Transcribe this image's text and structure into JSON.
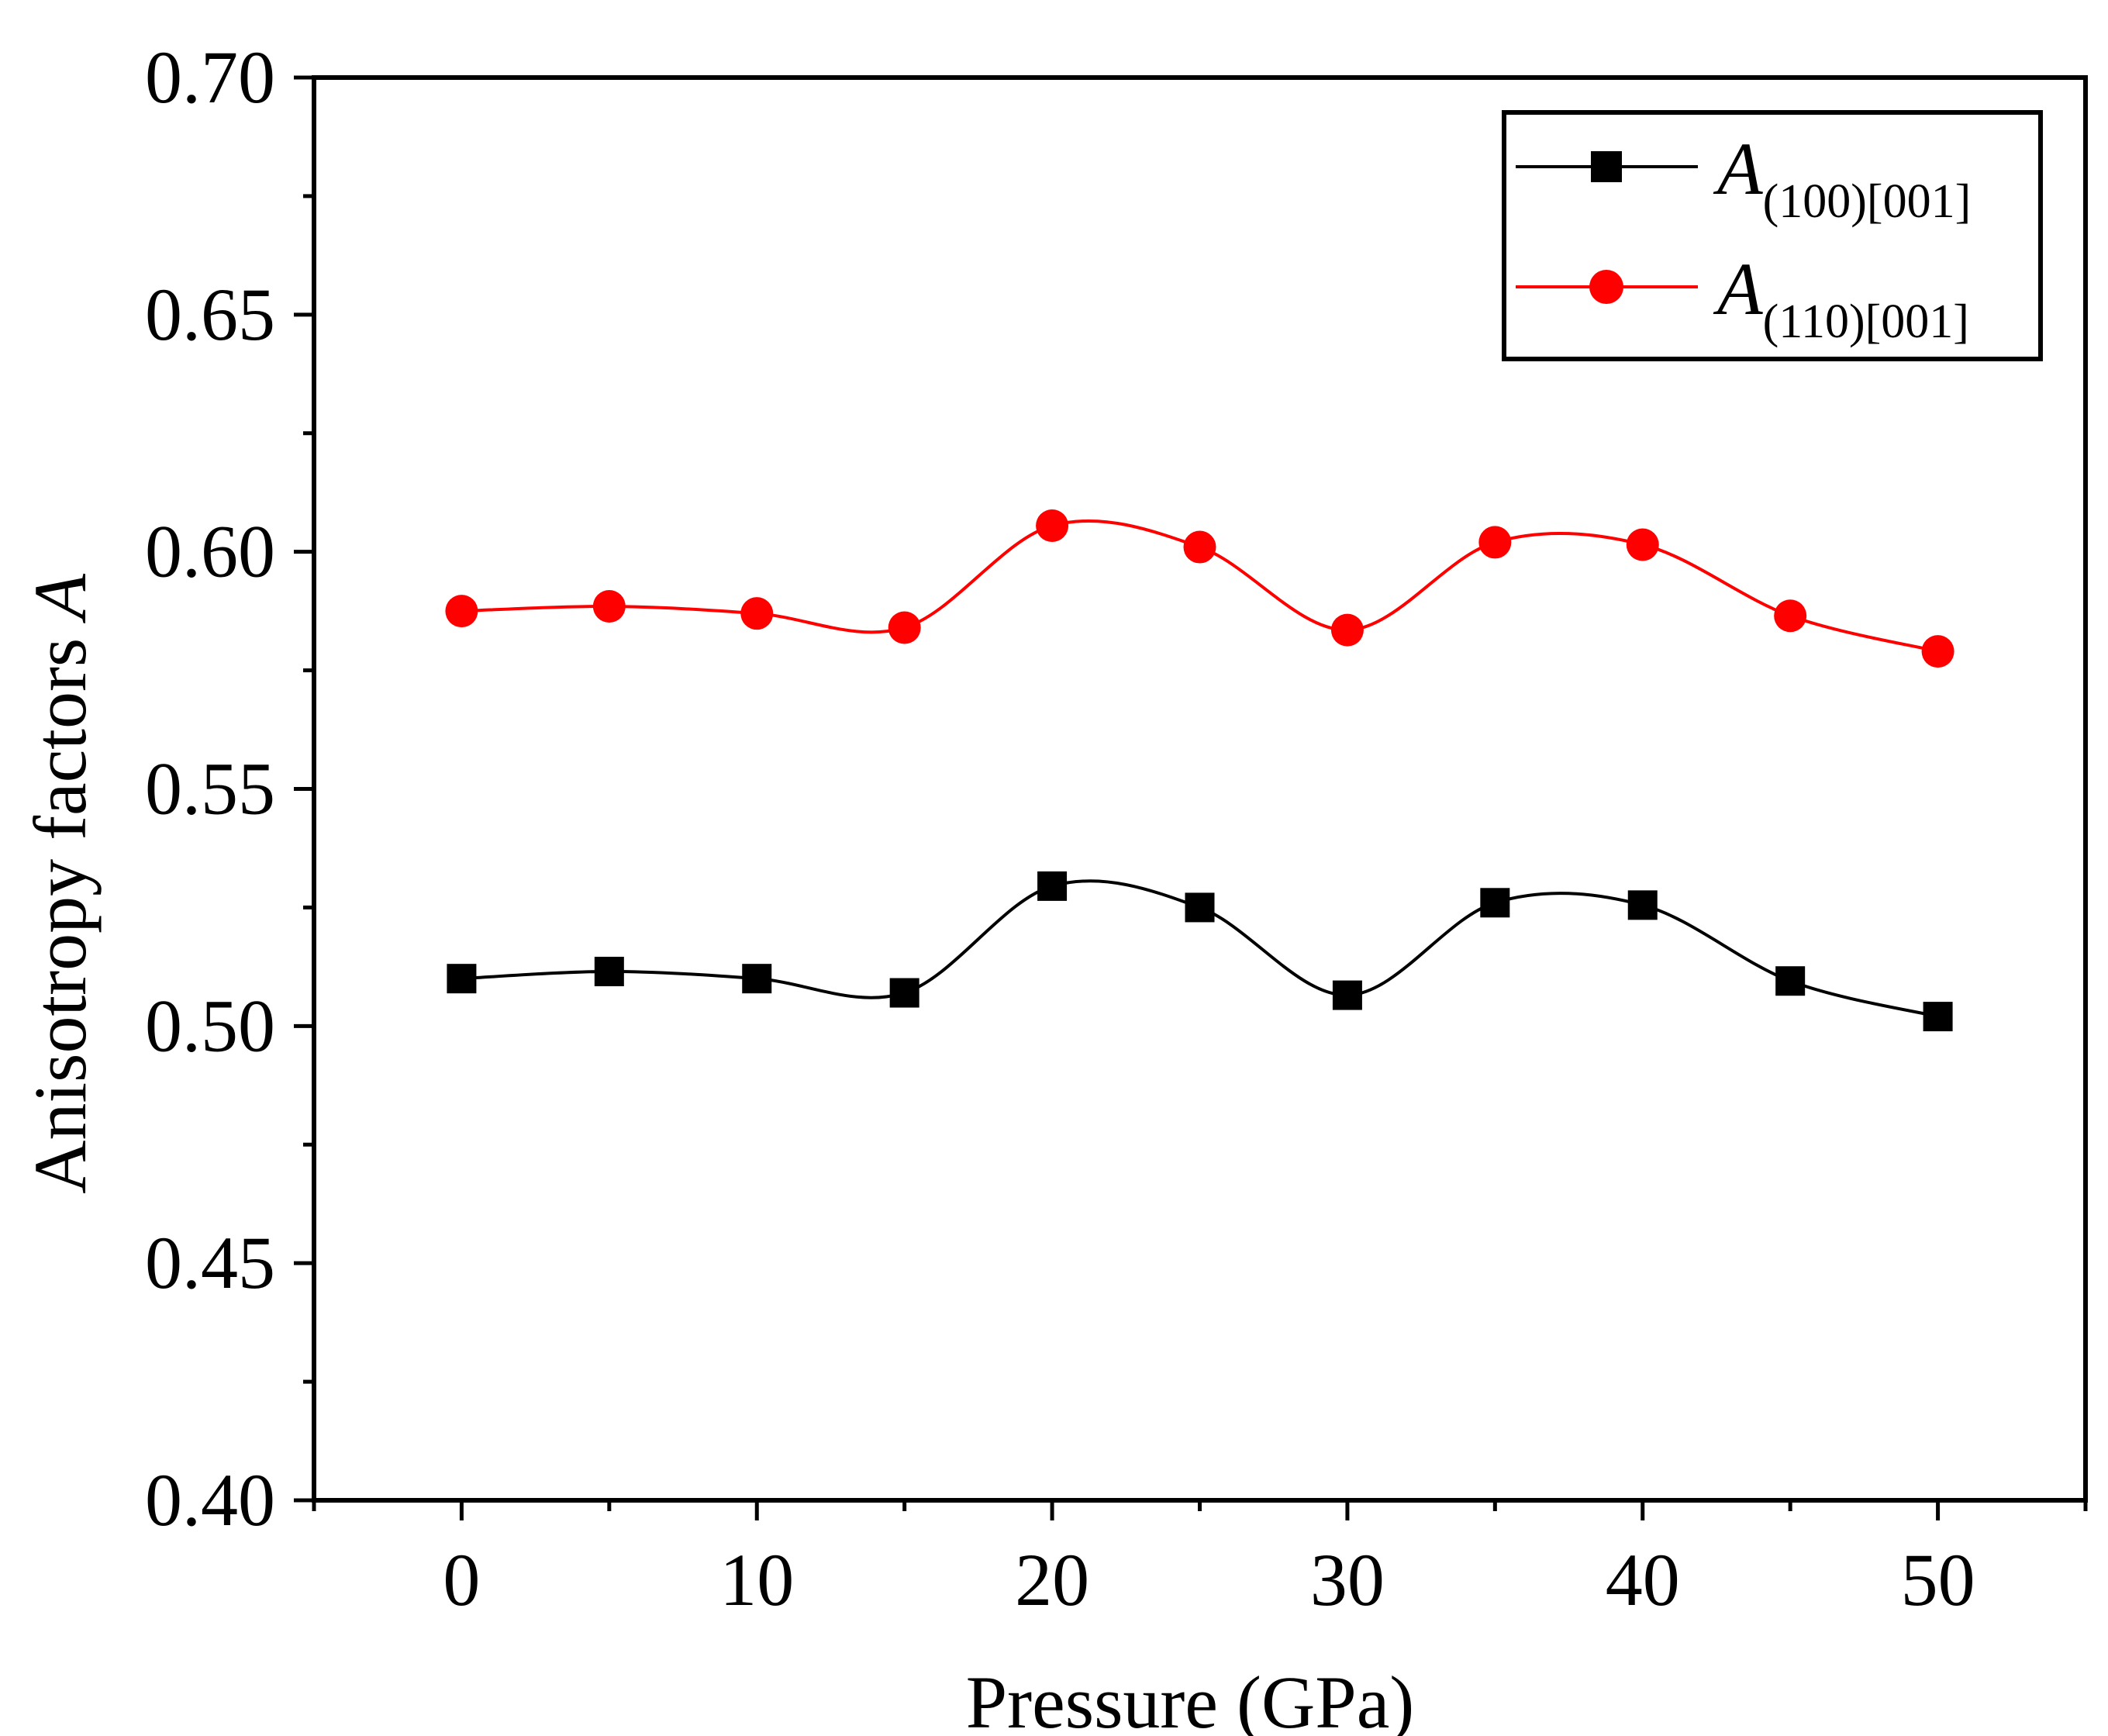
{
  "chart_data": {
    "type": "line",
    "title": "",
    "xlabel": "Pressure (GPa)",
    "ylabel_text": "Anisotropy factors ",
    "ylabel_symbol": "A",
    "xlim": [
      -5,
      55
    ],
    "ylim": [
      0.4,
      0.7
    ],
    "x_ticks": [
      0,
      10,
      20,
      30,
      40,
      50
    ],
    "x_tick_labels": [
      "0",
      "10",
      "20",
      "30",
      "40",
      "50"
    ],
    "x_minor_ticks": [
      -5,
      5,
      15,
      25,
      35,
      45,
      55
    ],
    "y_ticks": [
      0.4,
      0.45,
      0.5,
      0.55,
      0.6,
      0.65,
      0.7
    ],
    "y_tick_labels": [
      "0.40",
      "0.45",
      "0.50",
      "0.55",
      "0.60",
      "0.65",
      "0.70"
    ],
    "y_minor_ticks": [
      0.425,
      0.475,
      0.525,
      0.575,
      0.625,
      0.675
    ],
    "x": [
      0,
      5,
      10,
      15,
      20,
      25,
      30,
      35,
      40,
      45,
      50
    ],
    "legend_position": "top-right",
    "smooth": true,
    "series": [
      {
        "name": "A(100)[001]",
        "symbol": "A",
        "subscript": "(100)[001]",
        "color": "#000000",
        "marker": "square",
        "values": [
          0.51,
          0.5115,
          0.51,
          0.507,
          0.5295,
          0.525,
          0.5065,
          0.526,
          0.5255,
          0.5095,
          0.502
        ]
      },
      {
        "name": "A(110)[001]",
        "symbol": "A",
        "subscript": "(110)[001]",
        "color": "#ff0000",
        "marker": "circle",
        "values": [
          0.5875,
          0.5885,
          0.587,
          0.584,
          0.6055,
          0.601,
          0.5835,
          0.602,
          0.6015,
          0.5865,
          0.579
        ]
      }
    ]
  }
}
